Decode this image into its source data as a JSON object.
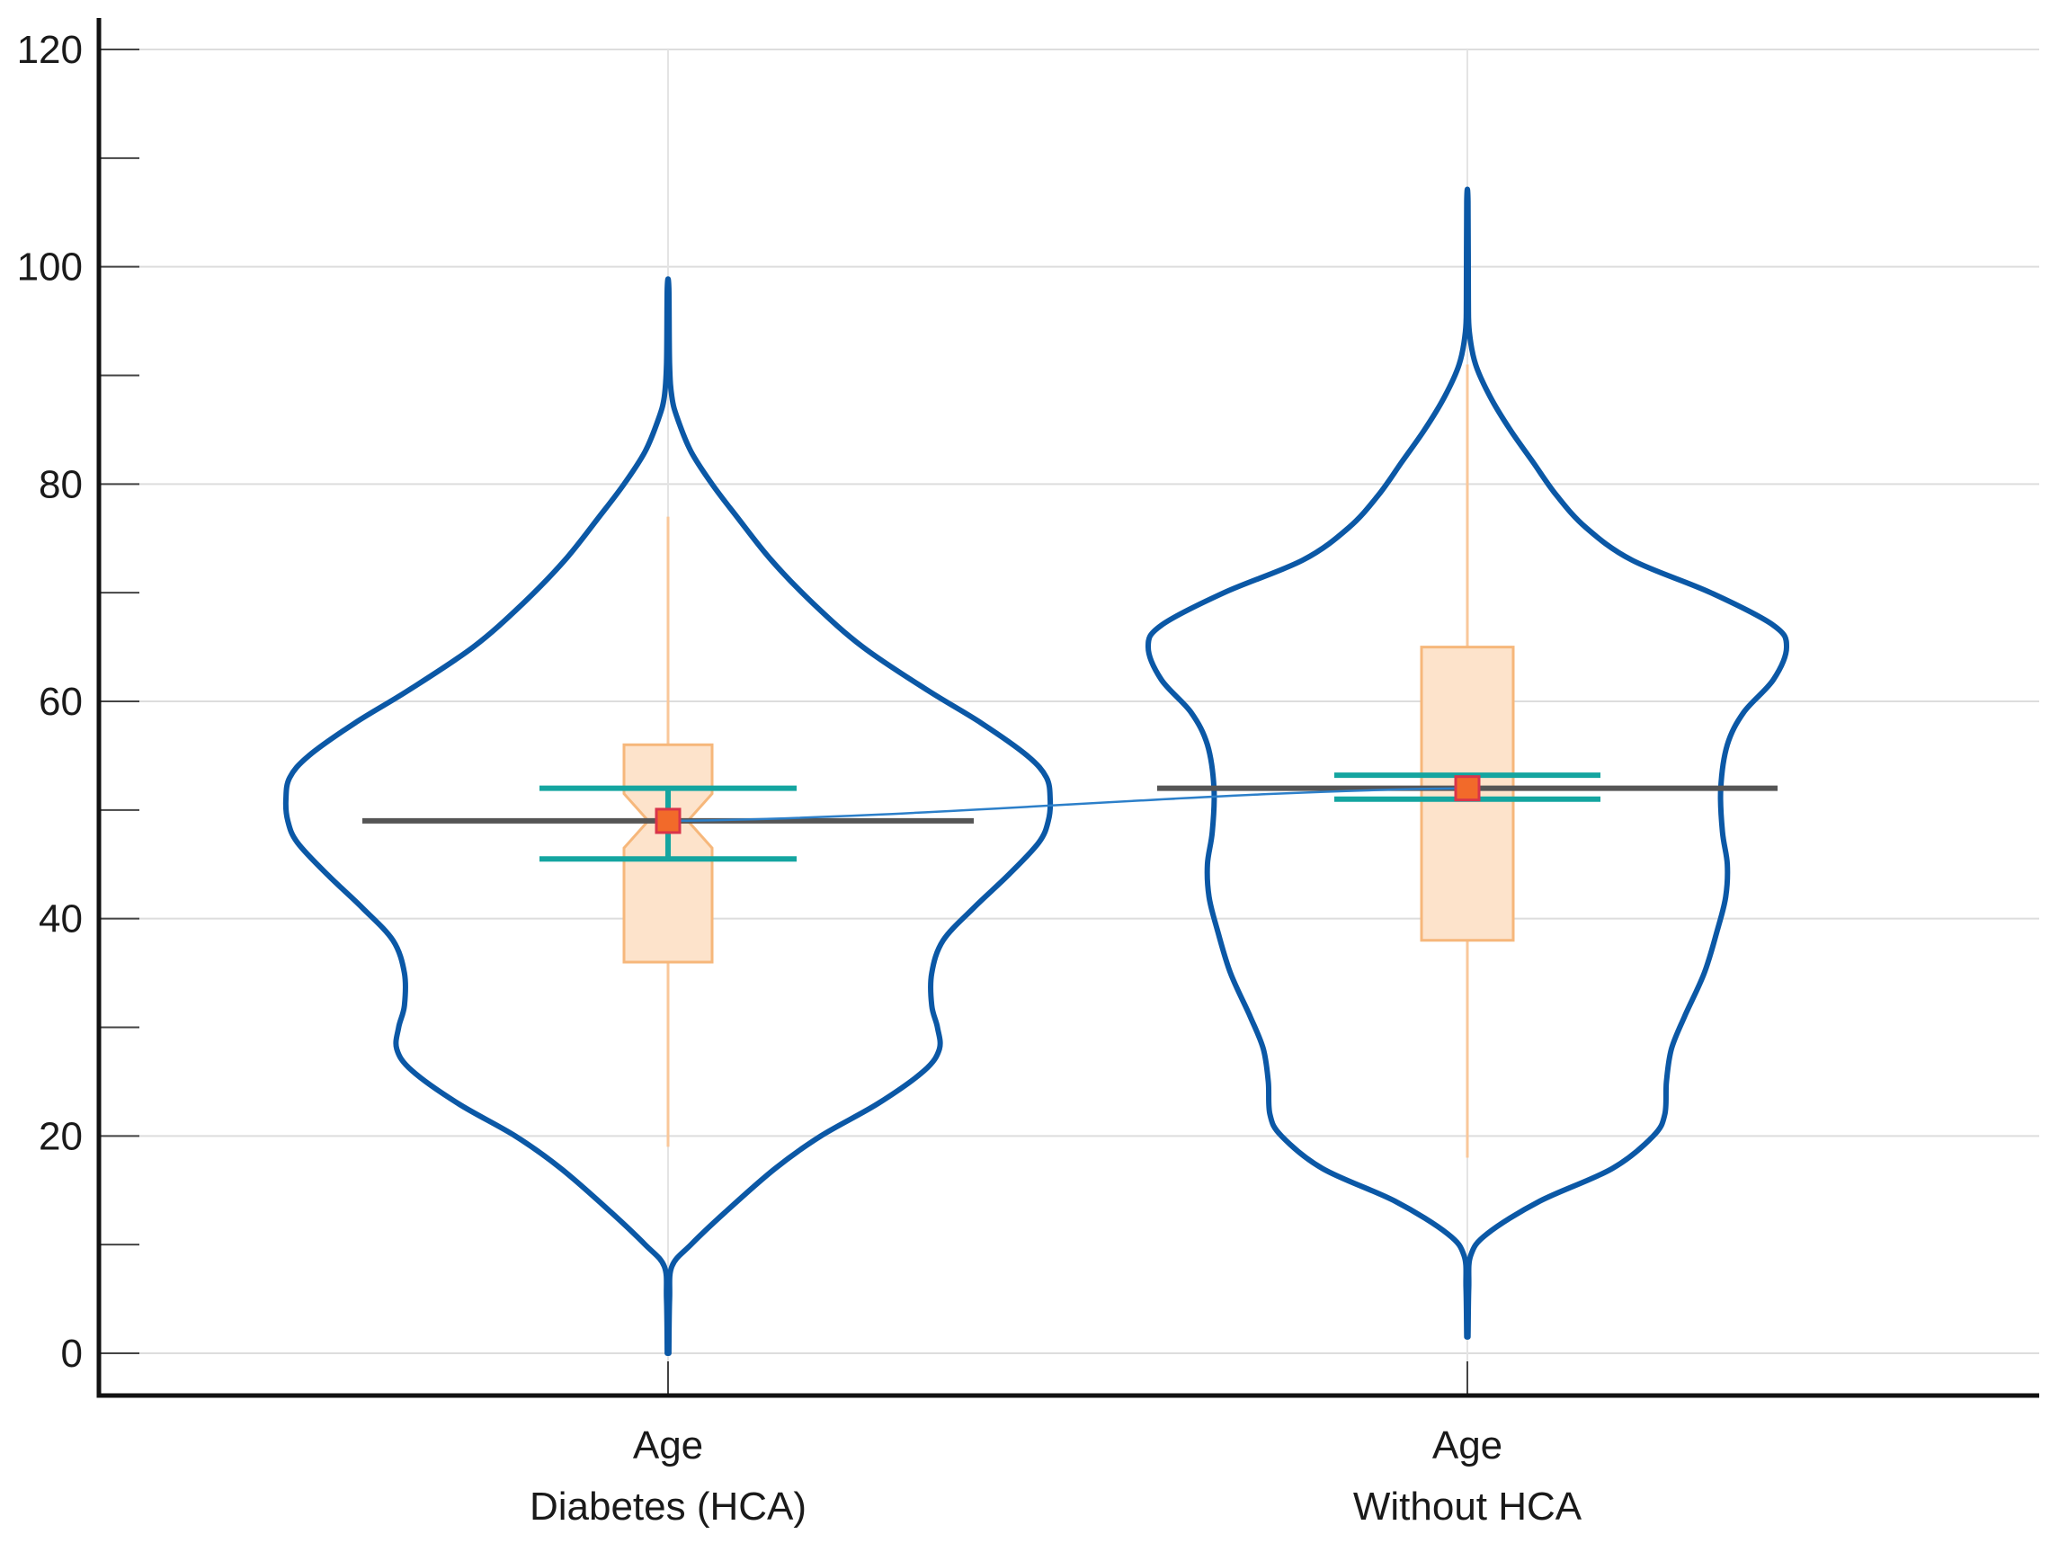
{
  "chart_data": {
    "type": "violin",
    "title": "",
    "xlabel": "",
    "ylabel": "",
    "ylim": [
      0,
      120
    ],
    "yticks": [
      0,
      20,
      40,
      60,
      80,
      100,
      120
    ],
    "y_minor_step": 10,
    "grid": true,
    "legend": "none",
    "categories": [
      {
        "line1": "Age",
        "line2": "Diabetes (HCA)"
      },
      {
        "line1": "Age",
        "line2": "Without HCA"
      }
    ],
    "series": [
      {
        "min": 0,
        "max": 98,
        "whisker_low": 19,
        "whisker_high": 77,
        "q1": 36,
        "median": 49,
        "q3": 56,
        "notch_low": 46.5,
        "notch_high": 51.5,
        "mean": 49,
        "mean_ci": [
          45.5,
          52
        ],
        "density": [
          [
            0,
            0.002
          ],
          [
            5,
            0.004
          ],
          [
            8,
            0.01
          ],
          [
            10,
            0.06
          ],
          [
            13,
            0.15
          ],
          [
            17,
            0.28
          ],
          [
            20,
            0.4
          ],
          [
            23,
            0.55
          ],
          [
            26,
            0.67
          ],
          [
            28,
            0.71
          ],
          [
            30,
            0.705
          ],
          [
            32,
            0.69
          ],
          [
            35,
            0.69
          ],
          [
            38,
            0.72
          ],
          [
            41,
            0.8
          ],
          [
            44,
            0.89
          ],
          [
            47,
            0.97
          ],
          [
            49,
            0.995
          ],
          [
            51,
            1.0
          ],
          [
            53,
            0.99
          ],
          [
            55,
            0.94
          ],
          [
            58,
            0.82
          ],
          [
            61,
            0.68
          ],
          [
            65,
            0.51
          ],
          [
            69,
            0.38
          ],
          [
            73,
            0.27
          ],
          [
            77,
            0.18
          ],
          [
            80,
            0.115
          ],
          [
            83,
            0.06
          ],
          [
            86,
            0.025
          ],
          [
            88,
            0.01
          ],
          [
            91,
            0.004
          ],
          [
            98,
            0.002
          ]
        ]
      },
      {
        "min": 1.5,
        "max": 106,
        "whisker_low": 18,
        "whisker_high": 91,
        "q1": 38,
        "median": 52,
        "q3": 65,
        "notch_low": 52,
        "notch_high": 52,
        "mean": 52,
        "mean_ci": [
          51,
          53.2
        ],
        "density": [
          [
            1.5,
            0.002
          ],
          [
            6,
            0.004
          ],
          [
            9,
            0.01
          ],
          [
            11,
            0.06
          ],
          [
            14,
            0.22
          ],
          [
            17,
            0.44
          ],
          [
            20,
            0.565
          ],
          [
            22,
            0.6
          ],
          [
            25,
            0.605
          ],
          [
            28,
            0.62
          ],
          [
            31,
            0.66
          ],
          [
            35,
            0.72
          ],
          [
            39,
            0.76
          ],
          [
            42,
            0.785
          ],
          [
            45,
            0.79
          ],
          [
            48,
            0.775
          ],
          [
            52,
            0.77
          ],
          [
            56,
            0.79
          ],
          [
            59,
            0.84
          ],
          [
            62,
            0.93
          ],
          [
            65,
            0.97
          ],
          [
            67,
            0.93
          ],
          [
            70,
            0.74
          ],
          [
            73,
            0.5
          ],
          [
            76,
            0.36
          ],
          [
            79,
            0.27
          ],
          [
            82,
            0.2
          ],
          [
            85,
            0.13
          ],
          [
            88,
            0.07
          ],
          [
            91,
            0.025
          ],
          [
            94,
            0.006
          ],
          [
            97,
            0.003
          ],
          [
            106,
            0.002
          ]
        ]
      }
    ]
  },
  "colors": {
    "violin": "#0b58a6",
    "box_fill": "#fde3cb",
    "box_stroke": "#f6b77b",
    "whisker": "#f9c79a",
    "median_line": "#555555",
    "ci": "#14a5a0",
    "mean_marker_fill": "#f26a2a",
    "mean_marker_stroke": "#d9344a",
    "connector": "#2c7fc9"
  }
}
